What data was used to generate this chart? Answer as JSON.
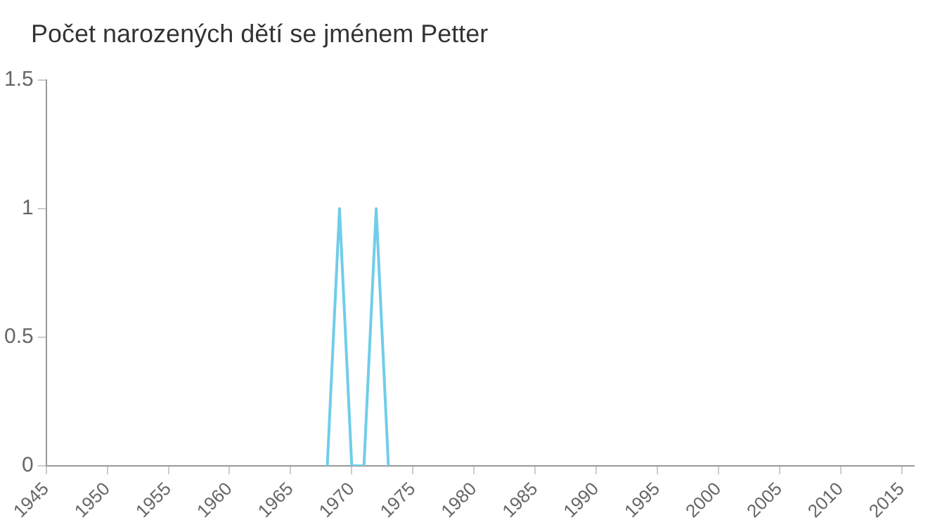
{
  "chart_data": {
    "type": "line",
    "title": "Počet narozených dětí se jménem Petter",
    "series": [
      {
        "color": "#70cde9",
        "x": [
          1968,
          1969,
          1970,
          1971,
          1972,
          1973
        ],
        "values": [
          0,
          1,
          0,
          0,
          1,
          0
        ]
      }
    ],
    "xlim": [
      1945,
      2016
    ],
    "xticks": [
      1945,
      1950,
      1955,
      1960,
      1965,
      1970,
      1975,
      1980,
      1985,
      1990,
      1995,
      2000,
      2005,
      2010,
      2015
    ],
    "ylim": [
      0,
      1.5
    ],
    "yticks": [
      0,
      0.5,
      1,
      1.5
    ],
    "grid": false,
    "legend": false,
    "marker": "none"
  }
}
